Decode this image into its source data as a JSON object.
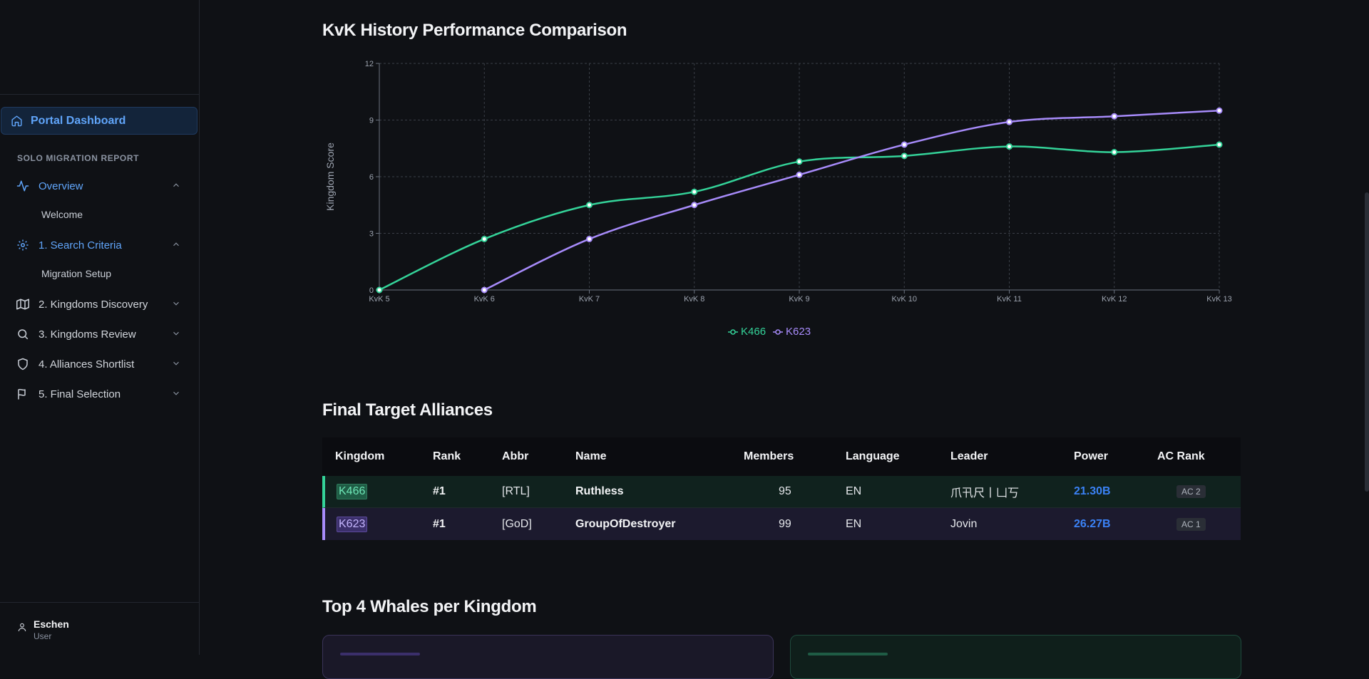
{
  "sidebar": {
    "portal_label": "Portal Dashboard",
    "section_label": "SOLO MIGRATION REPORT",
    "items": [
      {
        "label": "Overview",
        "sub": "Welcome"
      },
      {
        "label": "1. Search Criteria",
        "sub": "Migration Setup"
      },
      {
        "label": "2. Kingdoms Discovery"
      },
      {
        "label": "3. Kingdoms Review"
      },
      {
        "label": "4. Alliances Shortlist"
      },
      {
        "label": "5. Final Selection"
      }
    ],
    "user": {
      "name": "Eschen",
      "role": "User"
    }
  },
  "main": {
    "chart_title": "KvK History Performance Comparison",
    "table_title": "Final Target Alliances",
    "whales_title": "Top 4 Whales per Kingdom"
  },
  "chart_data": {
    "type": "line",
    "title": "KvK History Performance Comparison",
    "ylabel": "Kingdom Score",
    "xlabel": "",
    "categories": [
      "KvK 5",
      "KvK 6",
      "KvK 7",
      "KvK 8",
      "KvK 9",
      "KvK 10",
      "KvK 11",
      "KvK 12",
      "KvK 13"
    ],
    "ylim": [
      0,
      12
    ],
    "yticks": [
      0,
      3,
      6,
      9,
      12
    ],
    "grid": true,
    "legend": "bottom-center",
    "series": [
      {
        "name": "K466",
        "color": "#34d399",
        "values": [
          0,
          2.7,
          4.5,
          5.2,
          6.8,
          7.1,
          7.6,
          7.3,
          7.7
        ]
      },
      {
        "name": "K623",
        "color": "#a78bfa",
        "values": [
          null,
          0,
          2.7,
          4.5,
          6.1,
          7.7,
          8.9,
          9.2,
          9.5
        ]
      }
    ]
  },
  "table": {
    "headers": [
      "Kingdom",
      "Rank",
      "Abbr",
      "Name",
      "Members",
      "Language",
      "Leader",
      "Power",
      "AC Rank"
    ],
    "rows": [
      {
        "kingdom": "K466",
        "rank": "#1",
        "abbr": "[RTL]",
        "name": "Ruthless",
        "members": "95",
        "language": "EN",
        "leader": "爪卂尺丨凵丂",
        "power": "21.30B",
        "ac": "AC 2"
      },
      {
        "kingdom": "K623",
        "rank": "#1",
        "abbr": "[GoD]",
        "name": "GroupOfDestroyer",
        "members": "99",
        "language": "EN",
        "leader": "Jovin",
        "power": "26.27B",
        "ac": "AC 1"
      }
    ]
  },
  "colors": {
    "k466": "#34d399",
    "k623": "#a78bfa",
    "accent": "#60a5fa",
    "power": "#3b82f6"
  }
}
